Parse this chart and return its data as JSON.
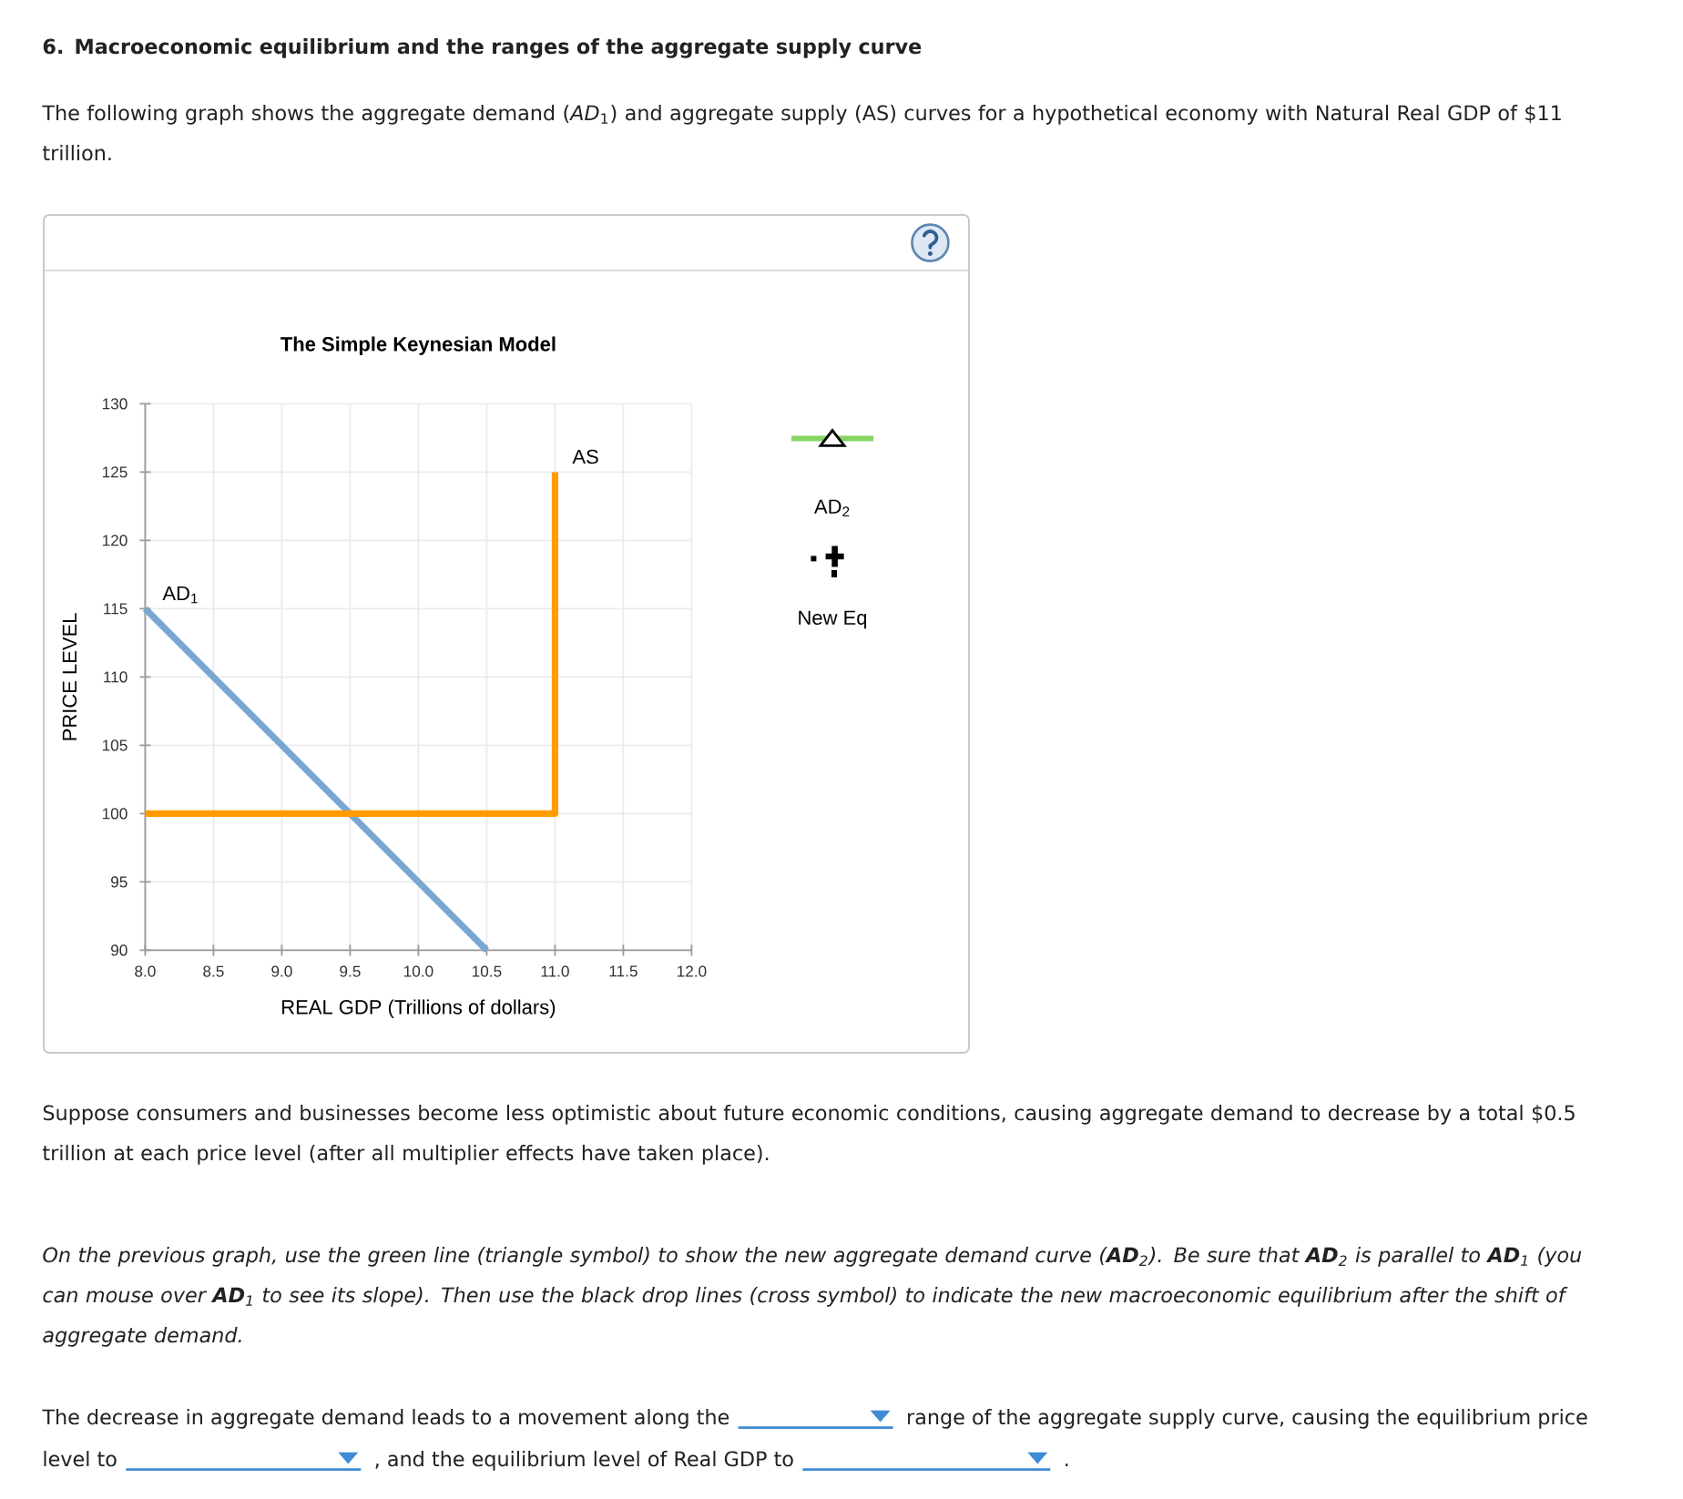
{
  "chart_data": {
    "type": "line",
    "title": "The Simple Keynesian Model",
    "xlabel": "REAL GDP (Trillions of dollars)",
    "ylabel": "PRICE LEVEL",
    "xlim": [
      8,
      12
    ],
    "xticks": [
      {
        "value": 8,
        "label": "8.0"
      },
      {
        "value": 8.5,
        "label": "8.5"
      },
      {
        "value": 9,
        "label": "9.0"
      },
      {
        "value": 9.5,
        "label": "9.5"
      },
      {
        "value": 10,
        "label": "10.0"
      },
      {
        "value": 10.5,
        "label": "10.5"
      },
      {
        "value": 11,
        "label": "11.0"
      },
      {
        "value": 11.5,
        "label": "11.5"
      },
      {
        "value": 12,
        "label": "12.0"
      }
    ],
    "ylim": [
      90,
      130
    ],
    "yticks": [
      90,
      95,
      100,
      105,
      110,
      115,
      120,
      125,
      130
    ],
    "grid": true,
    "series": [
      {
        "name": "AD$_{1}$",
        "color": "#7aa6d2",
        "x": [
          8,
          10.5
        ],
        "values": [
          115,
          90
        ]
      },
      {
        "name": "AS",
        "color": "#ff9c00",
        "x": [
          8,
          11,
          11
        ],
        "values": [
          100,
          100,
          125
        ]
      }
    ],
    "annotations": [
      "6. Macroeconomic equilibrium and the ranges of the aggregate supply curve",
      "The following graph shows the aggregate demand (*AD*$_{1}$) and aggregate supply (AS) curves for a hypothetical economy with Natural Real GDP of $11 trillion.",
      "Suppose consumers and businesses become less optimistic about future economic conditions, causing aggregate demand to decrease by a total $0.5 trillion at each price level (after all multiplier effects have taken place).",
      "On the previous graph, use the green line (triangle symbol) to show the new aggregate demand curve (**AD**$_{2}$). Be sure that **AD**$_{2}$ is parallel to **AD**$_{1}$ (you can mouse over **AD**$_{1}$ to see its slope). Then use the black drop lines (cross symbol) to indicate the new macroeconomic equilibrium after the shift of aggregate demand.",
      "The decrease in aggregate demand leads to a movement along the",
      "range of the aggregate supply curve, causing the equilibrium price",
      "level to",
      ", and the equilibrium level of Real GDP to",
      ".",
      "AD$_{2}$",
      "New Eq"
    ]
  }
}
